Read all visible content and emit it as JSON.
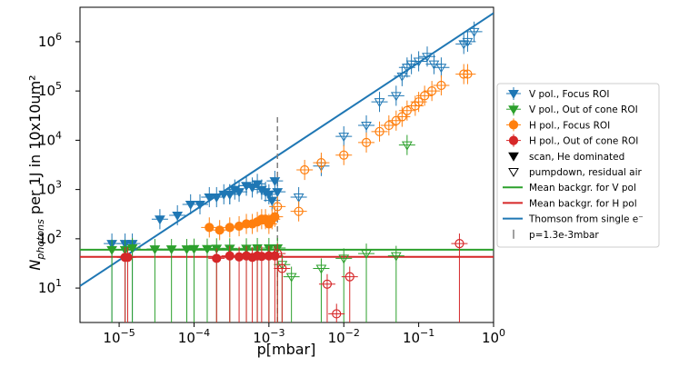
{
  "chart_data": {
    "type": "scatter",
    "xlabel": "p[mbar]",
    "ylabel_main": "N",
    "ylabel_sub": "photons",
    "ylabel_rest": " per 1J in 10x10um²",
    "x_scale": "log",
    "y_scale": "log",
    "xlim": [
      3e-06,
      1.0
    ],
    "ylim": [
      2,
      5000000.0
    ],
    "x_tick_labels": [
      "10",
      "10",
      "10",
      "10",
      "10",
      "10"
    ],
    "x_tick_exponents": [
      "−5",
      "−4",
      "−3",
      "−2",
      "−1",
      "0"
    ],
    "x_tick_values": [
      1e-05,
      0.0001,
      0.001,
      0.01,
      0.1,
      1
    ],
    "y_tick_labels": [
      "10",
      "10",
      "10",
      "10",
      "10",
      "10"
    ],
    "y_tick_exponents": [
      "1",
      "2",
      "3",
      "4",
      "5",
      "6"
    ],
    "y_tick_values": [
      10,
      100,
      1000,
      10000,
      100000,
      1000000
    ],
    "colors": {
      "blue": "#1f77b4",
      "green": "#2ca02c",
      "orange": "#ff7f0e",
      "red": "#d62728",
      "gray": "#808080"
    },
    "legend_position": "outside right",
    "legend": [
      {
        "label": "V pol., Focus ROI",
        "marker": "tri-down-filled",
        "color": "#1f77b4"
      },
      {
        "label": "V pol., Out of cone ROI",
        "marker": "tri-down-filled",
        "color": "#2ca02c"
      },
      {
        "label": "H pol., Focus ROI",
        "marker": "circle-filled",
        "color": "#ff7f0e"
      },
      {
        "label": "H pol., Out of cone ROI",
        "marker": "circle-filled",
        "color": "#d62728"
      },
      {
        "label": "scan, He dominated",
        "marker": "tri-down-filled",
        "color": "#000000"
      },
      {
        "label": "pumpdown, residual air",
        "marker": "tri-down-open",
        "color": "#000000"
      },
      {
        "label": "Mean backgr. for V pol",
        "marker": "line",
        "color": "#2ca02c"
      },
      {
        "label": "Mean backgr. for H pol",
        "marker": "line",
        "color": "#d62728"
      },
      {
        "label": "Thomson from single e⁻",
        "marker": "line",
        "color": "#1f77b4"
      },
      {
        "label": "p=1.3e-3mbar",
        "marker": "vline",
        "color": "#808080"
      }
    ],
    "lines": {
      "thomson": {
        "x": [
          3e-06,
          1.0
        ],
        "y": [
          11,
          3800000.0
        ]
      },
      "mean_bg_v": 60,
      "mean_bg_h": 43,
      "vline_x": 0.0013,
      "vline_y": [
        2,
        30000.0
      ]
    },
    "series": [
      {
        "name": "V pol., Focus ROI",
        "color": "#1f77b4",
        "marker": "tri",
        "x": [
          8e-06,
          1.2e-05,
          1.5e-05,
          3.5e-05,
          6e-05,
          9e-05,
          0.00012,
          0.00016,
          0.0002,
          0.00025,
          0.0003,
          0.00035,
          0.0004,
          0.0005,
          0.0006,
          0.0007,
          0.0008,
          0.0009,
          0.001,
          0.0011,
          0.0012,
          0.0013
        ],
        "y": [
          80,
          80,
          80,
          250,
          300,
          500,
          500,
          700,
          700,
          800,
          800,
          1000,
          900,
          1200,
          1100,
          1300,
          1000,
          900,
          800,
          600,
          1500,
          900
        ]
      },
      {
        "name": "V pol., Focus ROI open",
        "color": "#1f77b4",
        "marker": "tri-open",
        "x": [
          0.0003,
          0.0005,
          0.0025,
          0.005,
          0.01,
          0.02,
          0.03,
          0.05,
          0.06,
          0.07,
          0.08,
          0.1,
          0.13,
          0.16,
          0.2,
          0.4,
          0.45,
          0.55
        ],
        "y": [
          800,
          1200,
          700,
          3000,
          12000,
          20000,
          60000,
          80000,
          200000,
          300000,
          350000,
          400000,
          500000,
          350000,
          300000,
          900000,
          1000000,
          1600000
        ]
      },
      {
        "name": "V pol., Out of cone ROI",
        "color": "#2ca02c",
        "marker": "tri",
        "x": [
          8e-06,
          1.2e-05,
          1.5e-05,
          3e-05,
          5e-05,
          8e-05,
          0.0001,
          0.00015,
          0.0002,
          0.0003,
          0.0005,
          0.0007,
          0.001,
          0.0013
        ],
        "y": [
          60,
          60,
          65,
          62,
          62,
          62,
          63,
          63,
          64,
          64,
          64,
          65,
          65,
          65
        ]
      },
      {
        "name": "V pol., Out of cone ROI open",
        "color": "#2ca02c",
        "marker": "tri-open",
        "x": [
          0.0015,
          0.002,
          0.005,
          0.01,
          0.02,
          0.05,
          0.07
        ],
        "y": [
          30,
          17,
          25,
          40,
          50,
          45,
          8000
        ]
      },
      {
        "name": "H pol., Focus ROI",
        "color": "#ff7f0e",
        "marker": "circle",
        "x": [
          0.00016,
          0.00022,
          0.0003,
          0.0004,
          0.0005,
          0.0006,
          0.0007,
          0.0008,
          0.0009,
          0.001,
          0.0011,
          0.0012
        ],
        "y": [
          170,
          150,
          170,
          180,
          200,
          200,
          220,
          250,
          250,
          200,
          250,
          280
        ]
      },
      {
        "name": "H pol., Focus ROI open",
        "color": "#ff7f0e",
        "marker": "circle-open",
        "x": [
          0.0013,
          0.0025,
          0.003,
          0.005,
          0.01,
          0.02,
          0.03,
          0.04,
          0.05,
          0.06,
          0.07,
          0.09,
          0.1,
          0.12,
          0.15,
          0.2,
          0.4,
          0.45
        ],
        "y": [
          450,
          360,
          2500,
          3500,
          5000,
          9000,
          15000,
          20000,
          25000,
          30000,
          40000,
          50000,
          60000,
          80000,
          100000,
          130000,
          220000,
          220000
        ]
      },
      {
        "name": "H pol., Out of cone ROI",
        "color": "#d62728",
        "marker": "circle",
        "x": [
          1.2e-05,
          1.3e-05,
          0.0002,
          0.0003,
          0.0004,
          0.0005,
          0.0006,
          0.0007,
          0.0008,
          0.001,
          0.0012
        ],
        "y": [
          42,
          42,
          40,
          45,
          43,
          45,
          42,
          45,
          44,
          45,
          45
        ]
      },
      {
        "name": "H pol., Out of cone ROI open",
        "color": "#d62728",
        "marker": "circle-open",
        "x": [
          0.0013,
          0.0015,
          0.006,
          0.008,
          0.012,
          0.35
        ],
        "y": [
          50,
          25,
          12,
          3,
          17,
          80
        ]
      }
    ]
  }
}
